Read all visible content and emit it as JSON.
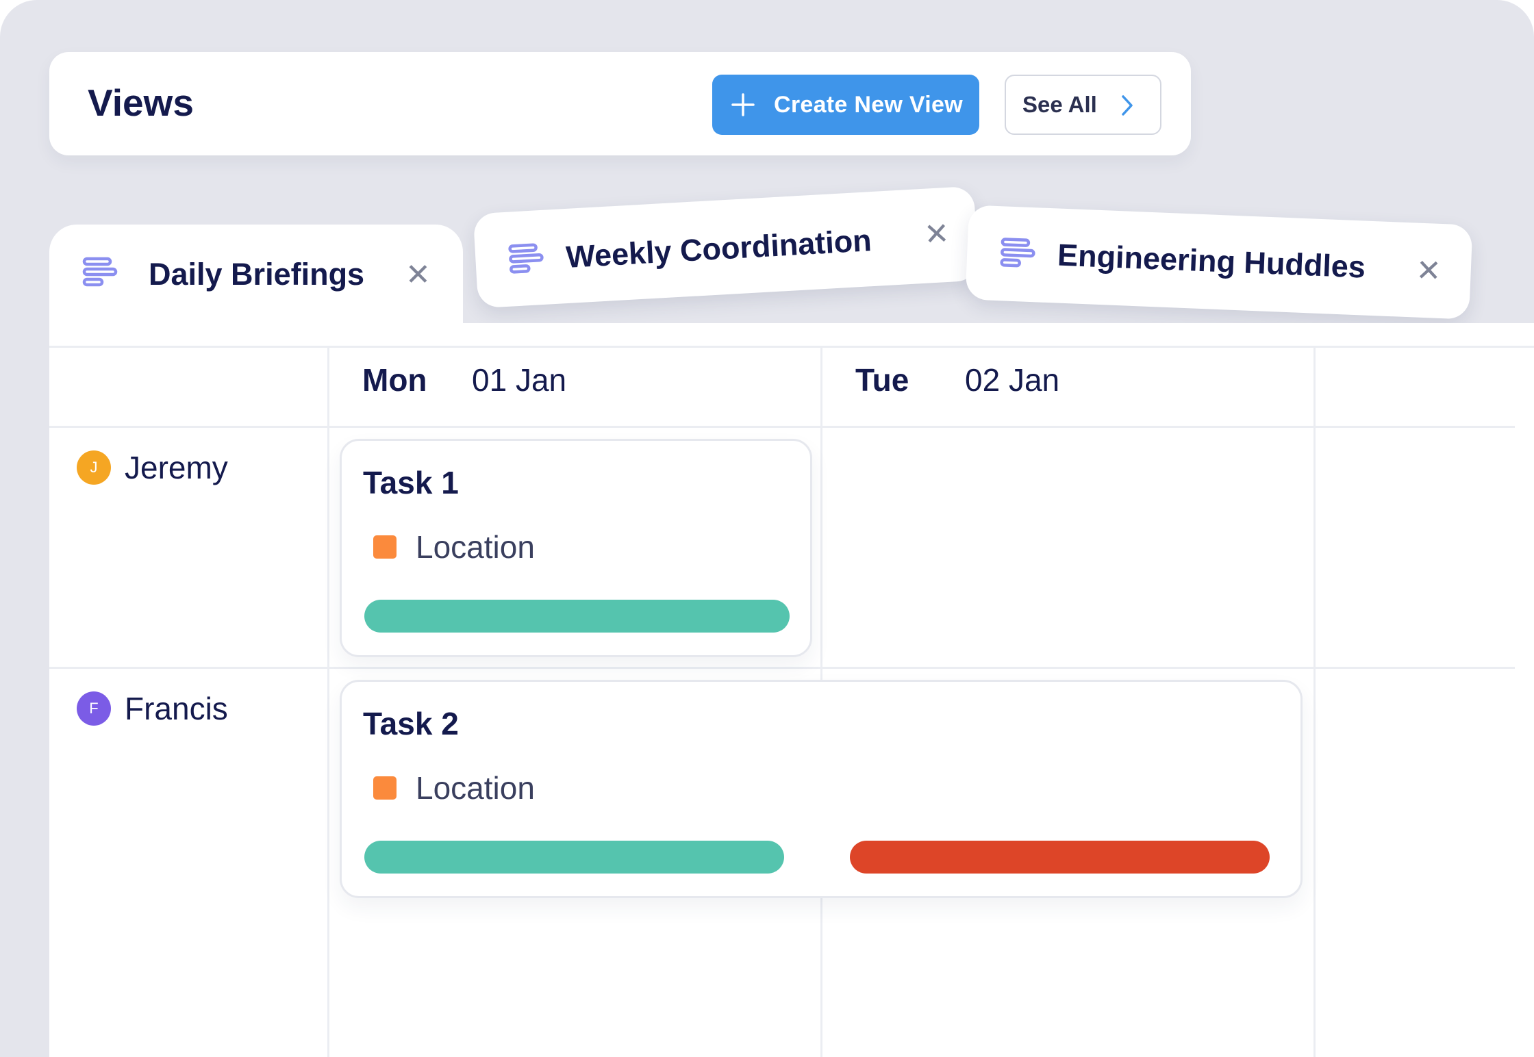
{
  "header": {
    "title": "Views",
    "create_label": "Create New View",
    "see_all_label": "See All"
  },
  "tabs": [
    {
      "label": "Daily Briefings",
      "icon": "gantt-icon",
      "active": true
    },
    {
      "label": "Weekly Coordination",
      "icon": "gantt-icon",
      "active": false
    },
    {
      "label": "Engineering Huddles",
      "icon": "gantt-icon",
      "active": false
    }
  ],
  "calendar": {
    "days": [
      {
        "name": "Mon",
        "date": "01 Jan"
      },
      {
        "name": "Tue",
        "date": "02 Jan"
      }
    ],
    "people": [
      {
        "name": "Jeremy",
        "initial": "J",
        "color": "#f5a623"
      },
      {
        "name": "Francis",
        "initial": "F",
        "color": "#7b5ce6"
      }
    ],
    "tasks": [
      {
        "title": "Task 1",
        "location": "Location",
        "assignee": "Jeremy",
        "days": [
          "Mon"
        ],
        "bar_colors": [
          "#55c4ae"
        ]
      },
      {
        "title": "Task 2",
        "location": "Location",
        "assignee": "Francis",
        "days": [
          "Mon",
          "Tue"
        ],
        "bar_colors": [
          "#55c4ae",
          "#dd4528"
        ]
      }
    ]
  },
  "colors": {
    "accent": "#3f95ea",
    "location": "#fb8a3c",
    "tab_icon": "#8b8ff0",
    "background": "#e4e5ec"
  }
}
